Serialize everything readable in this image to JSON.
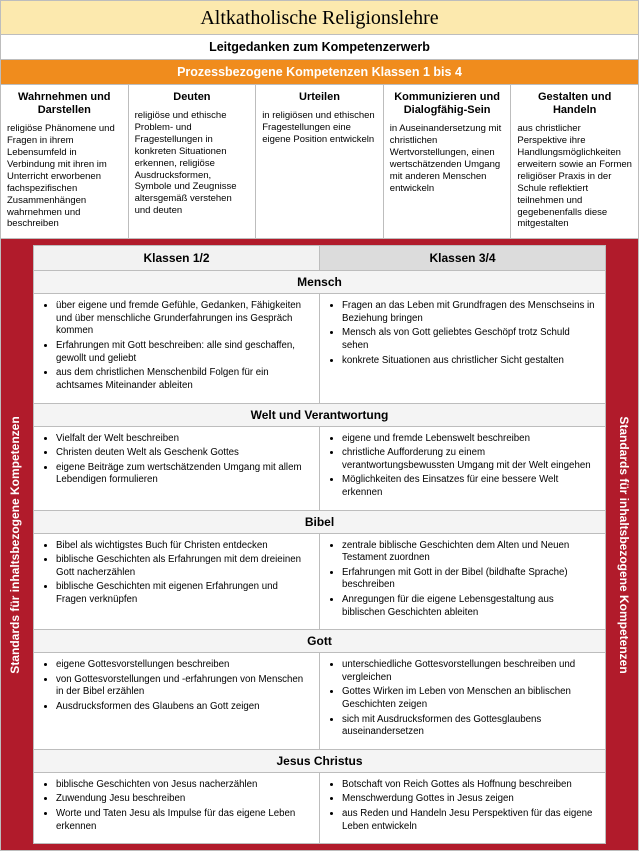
{
  "title": "Altkatholische Religionslehre",
  "subtitle": "Leitgedanken zum Kompetenzerwerb",
  "processTitle": "Prozessbezogene Kompetenzen Klassen 1 bis 4",
  "process": [
    {
      "head": "Wahrnehmen und Darstellen",
      "body": "religiöse Phänomene und Fragen in ihrem Lebensumfeld in Verbindung mit ihren im Unterricht erworbenen fachspezifischen Zusammenhängen wahrnehmen und beschreiben"
    },
    {
      "head": "Deuten",
      "body": "religiöse und ethische Problem- und Fragestellungen in konkreten Situationen erkennen, religiöse Ausdrucksformen, Symbole und Zeugnisse altersgemäß verstehen und deuten"
    },
    {
      "head": "Urteilen",
      "body": "in religiösen und ethischen Fragestellungen eine eigene Position entwickeln"
    },
    {
      "head": "Kommunizieren und Dialogfähig-Sein",
      "body": "in Auseinandersetzung mit christlichen Wertvorstellungen, einen wertschätzenden Umgang mit anderen Menschen entwickeln"
    },
    {
      "head": "Gestalten und Handeln",
      "body": "aus christlicher Perspektive ihre Handlungsmöglichkeiten erweitern sowie an Formen religiöser Praxis in der Schule reflektiert teilnehmen und gegebenenfalls diese mitgestalten"
    }
  ],
  "sideLabel": "Standards für inhaltsbezogene Kompetenzen",
  "klass12": "Klassen 1/2",
  "klass34": "Klassen 3/4",
  "topics": [
    {
      "name": "Mensch",
      "left": [
        "über eigene und fremde Gefühle, Gedanken, Fähigkeiten und über menschliche Grunderfahrungen ins Gespräch kommen",
        "Erfahrungen mit Gott beschreiben: alle sind geschaffen, gewollt und geliebt",
        "aus dem christlichen Menschenbild Folgen für ein achtsames Miteinander ableiten"
      ],
      "right": [
        "Fragen an das Leben mit Grundfragen des Menschseins in Beziehung bringen",
        "Mensch als von Gott geliebtes Geschöpf trotz Schuld sehen",
        "konkrete Situationen aus christlicher Sicht gestalten"
      ]
    },
    {
      "name": "Welt und Verantwortung",
      "left": [
        "Vielfalt der Welt beschreiben",
        "Christen deuten Welt als Geschenk Gottes",
        "eigene Beiträge zum wertschätzenden Umgang mit allem Lebendigen formulieren"
      ],
      "right": [
        "eigene und fremde Lebenswelt beschreiben",
        "christliche Aufforderung zu einem verantwortungsbewussten Umgang mit der Welt eingehen",
        "Möglichkeiten des Einsatzes für eine bessere Welt erkennen"
      ]
    },
    {
      "name": "Bibel",
      "left": [
        "Bibel als wichtigstes Buch für Christen entdecken",
        "biblische Geschichten als Erfahrungen mit dem dreieinen Gott nacherzählen",
        "biblische Geschichten mit eigenen Erfahrungen und Fragen verknüpfen"
      ],
      "right": [
        "zentrale biblische Geschichten dem Alten und Neuen Testament zuordnen",
        "Erfahrungen mit Gott in der Bibel (bildhafte Sprache) beschreiben",
        "Anregungen für die eigene Lebensgestaltung aus biblischen Geschichten ableiten"
      ]
    },
    {
      "name": "Gott",
      "left": [
        "eigene Gottesvorstellungen beschreiben",
        "von Gottesvorstellungen und -erfahrungen von Menschen in der Bibel erzählen",
        "Ausdrucksformen des Glaubens an Gott zeigen"
      ],
      "right": [
        "unterschiedliche Gottesvorstellungen beschreiben und vergleichen",
        "Gottes Wirken im Leben von Menschen an biblischen Geschichten zeigen",
        "sich mit Ausdrucksformen des Gottesglaubens auseinandersetzen"
      ]
    },
    {
      "name": "Jesus Christus",
      "left": [
        "biblische Geschichten von Jesus nacherzählen",
        "Zuwendung Jesu beschreiben",
        "Worte und Taten Jesu als Impulse für das eigene Leben erkennen"
      ],
      "right": [
        "Botschaft von Reich Gottes als Hoffnung beschreiben",
        "Menschwerdung Gottes in Jesus zeigen",
        "aus Reden und Handeln Jesu Perspektiven für das eigene Leben entwickeln"
      ]
    }
  ]
}
